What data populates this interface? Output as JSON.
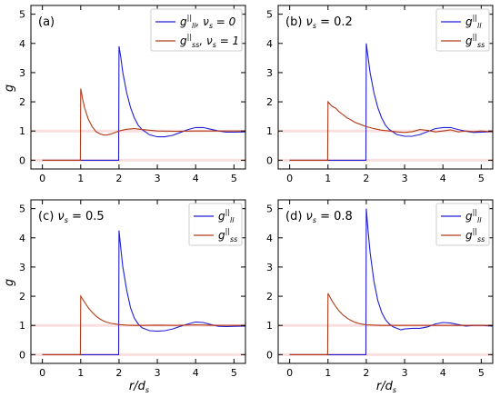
{
  "chart_data": [
    {
      "type": "line",
      "panel_label": "(a)",
      "xlabel": "",
      "ylabel": "g",
      "xlim": [
        -0.3,
        5.3
      ],
      "ylim": [
        -0.3,
        5.3
      ],
      "xticks": [
        "0",
        "1",
        "2",
        "3",
        "4",
        "5"
      ],
      "yticks": [
        "0",
        "1",
        "2",
        "3",
        "4",
        "5"
      ],
      "legend_position": "top-right",
      "series": [
        {
          "name": "g_ll^||, ν_s = 0",
          "legend": {
            "base": "g",
            "sub": "ll",
            "sup": "||",
            "suffix": ", ν",
            "suffix_sub": "s",
            "suffix_tail": " = 0"
          },
          "color": "#1f1fd6",
          "x": [
            0,
            1.99,
            2.0,
            2.05,
            2.1,
            2.2,
            2.3,
            2.4,
            2.5,
            2.6,
            2.8,
            3.0,
            3.2,
            3.4,
            3.6,
            3.8,
            4.0,
            4.2,
            4.4,
            4.6,
            4.8,
            5.0,
            5.3
          ],
          "y": [
            0,
            0,
            3.9,
            3.5,
            3.0,
            2.3,
            1.8,
            1.45,
            1.2,
            1.05,
            0.87,
            0.8,
            0.8,
            0.85,
            0.95,
            1.05,
            1.12,
            1.12,
            1.06,
            1.0,
            0.96,
            0.96,
            0.97
          ]
        },
        {
          "name": "g_ss^||, ν_s = 1",
          "legend": {
            "base": "g",
            "sub": "ss",
            "sup": "||",
            "suffix": ", ν",
            "suffix_sub": "s",
            "suffix_tail": " = 1"
          },
          "color": "#b03a18",
          "x": [
            0,
            0.99,
            1.0,
            1.05,
            1.1,
            1.2,
            1.3,
            1.4,
            1.5,
            1.6,
            1.7,
            1.8,
            2.0,
            2.2,
            2.4,
            2.6,
            3.0,
            3.5,
            4.0,
            4.5,
            5.0,
            5.3
          ],
          "y": [
            0,
            0,
            2.45,
            2.1,
            1.8,
            1.4,
            1.15,
            0.98,
            0.9,
            0.86,
            0.87,
            0.9,
            1.0,
            1.06,
            1.08,
            1.05,
            1.0,
            0.99,
            1.0,
            1.0,
            1.0,
            1.0
          ]
        }
      ]
    },
    {
      "type": "line",
      "panel_label": "(b) ν_s = 0.2",
      "xlabel": "",
      "ylabel": "",
      "xlim": [
        -0.3,
        5.3
      ],
      "ylim": [
        -0.3,
        5.3
      ],
      "xticks": [
        "0",
        "1",
        "2",
        "3",
        "4",
        "5"
      ],
      "yticks": [
        "0",
        "1",
        "2",
        "3",
        "4",
        "5"
      ],
      "legend_position": "top-right",
      "series": [
        {
          "name": "g_ll^||",
          "legend": {
            "base": "g",
            "sub": "ll",
            "sup": "||"
          },
          "color": "#1f1fd6",
          "x": [
            0,
            1.99,
            2.0,
            2.05,
            2.1,
            2.2,
            2.3,
            2.4,
            2.5,
            2.6,
            2.8,
            3.0,
            3.2,
            3.4,
            3.6,
            3.8,
            4.0,
            4.2,
            4.4,
            4.6,
            4.8,
            5.0,
            5.3
          ],
          "y": [
            0,
            0,
            4.0,
            3.5,
            3.0,
            2.3,
            1.8,
            1.45,
            1.2,
            1.05,
            0.88,
            0.82,
            0.82,
            0.88,
            0.98,
            1.08,
            1.12,
            1.12,
            1.05,
            0.99,
            0.95,
            0.96,
            0.98
          ]
        },
        {
          "name": "g_ss^||",
          "legend": {
            "base": "g",
            "sub": "ss",
            "sup": "||"
          },
          "color": "#b03a18",
          "x": [
            0,
            0.99,
            1.0,
            1.1,
            1.2,
            1.3,
            1.4,
            1.5,
            1.6,
            1.7,
            1.8,
            1.9,
            2.0,
            2.2,
            2.4,
            2.6,
            2.8,
            3.0,
            3.2,
            3.4,
            3.6,
            3.8,
            4.0,
            4.2,
            4.4,
            4.6,
            4.8,
            5.0,
            5.3
          ],
          "y": [
            0,
            0,
            2.0,
            1.85,
            1.78,
            1.65,
            1.55,
            1.45,
            1.38,
            1.3,
            1.25,
            1.2,
            1.15,
            1.08,
            1.03,
            1.0,
            0.97,
            0.95,
            0.98,
            1.05,
            1.02,
            0.97,
            1.0,
            1.04,
            0.97,
            1.0,
            0.98,
            1.0,
            0.97
          ]
        }
      ]
    },
    {
      "type": "line",
      "panel_label": "(c) ν_s = 0.5",
      "xlabel": "r/d_s",
      "ylabel": "g",
      "xlim": [
        -0.3,
        5.3
      ],
      "ylim": [
        -0.3,
        5.3
      ],
      "xticks": [
        "0",
        "1",
        "2",
        "3",
        "4",
        "5"
      ],
      "yticks": [
        "0",
        "1",
        "2",
        "3",
        "4",
        "5"
      ],
      "legend_position": "top-right",
      "series": [
        {
          "name": "g_ll^||",
          "legend": {
            "base": "g",
            "sub": "ll",
            "sup": "||"
          },
          "color": "#1f1fd6",
          "x": [
            0,
            1.99,
            2.0,
            2.05,
            2.1,
            2.2,
            2.3,
            2.4,
            2.5,
            2.6,
            2.8,
            3.0,
            3.2,
            3.4,
            3.6,
            3.8,
            4.0,
            4.2,
            4.4,
            4.6,
            4.8,
            5.0,
            5.3
          ],
          "y": [
            0,
            0,
            4.25,
            3.6,
            3.0,
            2.2,
            1.6,
            1.25,
            1.05,
            0.92,
            0.82,
            0.8,
            0.82,
            0.88,
            0.97,
            1.05,
            1.12,
            1.1,
            1.03,
            0.97,
            0.96,
            0.97,
            0.98
          ]
        },
        {
          "name": "g_ss^||",
          "legend": {
            "base": "g",
            "sub": "ss",
            "sup": "||"
          },
          "color": "#b03a18",
          "x": [
            0,
            0.99,
            1.0,
            1.1,
            1.2,
            1.3,
            1.4,
            1.5,
            1.6,
            1.7,
            1.8,
            1.9,
            2.0,
            2.2,
            2.4,
            2.6,
            3.0,
            3.5,
            4.0,
            4.5,
            5.0,
            5.3
          ],
          "y": [
            0,
            0,
            2.0,
            1.8,
            1.6,
            1.45,
            1.32,
            1.22,
            1.15,
            1.1,
            1.07,
            1.05,
            1.03,
            1.01,
            1.0,
            1.0,
            1.01,
            1.0,
            1.02,
            1.0,
            1.0,
            1.0
          ]
        }
      ]
    },
    {
      "type": "line",
      "panel_label": "(d) ν_s = 0.8",
      "xlabel": "r/d_s",
      "ylabel": "",
      "xlim": [
        -0.3,
        5.3
      ],
      "ylim": [
        -0.3,
        5.3
      ],
      "xticks": [
        "0",
        "1",
        "2",
        "3",
        "4",
        "5"
      ],
      "yticks": [
        "0",
        "1",
        "2",
        "3",
        "4",
        "5"
      ],
      "legend_position": "top-right",
      "series": [
        {
          "name": "g_ll^||",
          "legend": {
            "base": "g",
            "sub": "ll",
            "sup": "||"
          },
          "color": "#1f1fd6",
          "x": [
            0,
            1.99,
            2.0,
            2.05,
            2.1,
            2.2,
            2.3,
            2.4,
            2.5,
            2.6,
            2.7,
            2.8,
            2.9,
            3.0,
            3.2,
            3.4,
            3.6,
            3.8,
            4.0,
            4.2,
            4.4,
            4.6,
            4.8,
            5.0,
            5.3
          ],
          "y": [
            0,
            0,
            5.0,
            4.2,
            3.5,
            2.5,
            1.85,
            1.45,
            1.2,
            1.05,
            0.95,
            0.9,
            0.85,
            0.88,
            0.9,
            0.9,
            0.95,
            1.05,
            1.1,
            1.08,
            1.03,
            0.98,
            1.0,
            1.0,
            0.98
          ]
        },
        {
          "name": "g_ss^||",
          "legend": {
            "base": "g",
            "sub": "ss",
            "sup": "||"
          },
          "color": "#b03a18",
          "x": [
            0,
            0.99,
            1.0,
            1.1,
            1.2,
            1.3,
            1.4,
            1.5,
            1.6,
            1.7,
            1.8,
            1.9,
            2.0,
            2.2,
            2.4,
            2.6,
            3.0,
            3.5,
            4.0,
            4.5,
            5.0,
            5.3
          ],
          "y": [
            0,
            0,
            2.1,
            1.85,
            1.65,
            1.48,
            1.35,
            1.25,
            1.17,
            1.11,
            1.07,
            1.04,
            1.02,
            1.01,
            1.0,
            1.0,
            1.0,
            1.0,
            1.0,
            1.0,
            1.0,
            1.0
          ]
        }
      ]
    }
  ]
}
